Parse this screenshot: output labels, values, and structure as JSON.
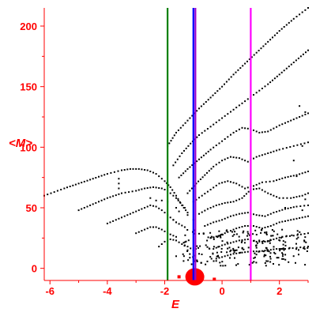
{
  "chart_data": {
    "type": "scatter",
    "title": "",
    "xlabel": "E",
    "ylabel": "<M>",
    "xlim": [
      -6.2,
      3.0
    ],
    "ylim": [
      -10,
      215
    ],
    "x_ticks": [
      -6,
      -4,
      -2,
      0,
      2
    ],
    "y_ticks": [
      0,
      50,
      100,
      150,
      200
    ],
    "grid": false,
    "legend": "none",
    "colors": {
      "axis": "#ff0000",
      "points": "#000000",
      "cluster": "#ff0000",
      "line_green": "#008000",
      "line_blue": "#0000ff",
      "line_purple": "#9900cc",
      "line_magenta": "#ff00ff"
    },
    "vertical_lines": [
      {
        "x": -1.9,
        "color": "#008000"
      },
      {
        "x": -1.0,
        "color": "#0000ff"
      },
      {
        "x": -0.93,
        "color": "#9900cc"
      },
      {
        "x": 1.0,
        "color": "#ff00ff"
      }
    ],
    "curves": [
      {
        "points": [
          [
            -6.2,
            60
          ],
          [
            -5.5,
            66
          ],
          [
            -5,
            70
          ],
          [
            -4.5,
            74
          ],
          [
            -4,
            78
          ],
          [
            -3.5,
            81
          ],
          [
            -3.2,
            82
          ],
          [
            -2.9,
            82
          ],
          [
            -2.6,
            81
          ],
          [
            -2.3,
            78
          ],
          [
            -2.0,
            72
          ],
          [
            -1.8,
            67
          ],
          [
            -1.6,
            60
          ],
          [
            -1.4,
            52
          ],
          [
            -1.2,
            46
          ]
        ]
      },
      {
        "points": [
          [
            -5.0,
            48
          ],
          [
            -4.5,
            53
          ],
          [
            -4,
            58
          ],
          [
            -3.5,
            62
          ],
          [
            -3,
            64
          ],
          [
            -2.7,
            66
          ],
          [
            -2.4,
            67
          ],
          [
            -2.1,
            66
          ],
          [
            -1.9,
            64
          ],
          [
            -1.6,
            58
          ],
          [
            -1.3,
            50
          ]
        ]
      },
      {
        "points": [
          [
            -4.0,
            37
          ],
          [
            -3.5,
            42
          ],
          [
            -3,
            47
          ],
          [
            -2.7,
            50
          ],
          [
            -2.5,
            52
          ],
          [
            -2.3,
            51
          ],
          [
            -2.1,
            48
          ],
          [
            -1.9,
            44
          ],
          [
            -1.6,
            38
          ],
          [
            -1.3,
            34
          ]
        ]
      },
      {
        "points": [
          [
            -3.0,
            29
          ],
          [
            -2.7,
            32
          ],
          [
            -2.5,
            34
          ],
          [
            -2.3,
            34
          ],
          [
            -2.1,
            32
          ],
          [
            -1.9,
            29
          ],
          [
            -1.6,
            26
          ]
        ]
      },
      {
        "points": [
          [
            -2.2,
            18
          ],
          [
            -2.0,
            22
          ],
          [
            -1.8,
            24
          ],
          [
            -1.6,
            23
          ],
          [
            -1.4,
            20
          ],
          [
            -1.2,
            18
          ],
          [
            -1.0,
            15
          ]
        ]
      },
      {
        "points": [
          [
            -1.9,
            101
          ],
          [
            -1.6,
            112
          ],
          [
            -1.2,
            122
          ],
          [
            -0.8,
            132
          ],
          [
            -0.4,
            141
          ],
          [
            0,
            150
          ],
          [
            0.4,
            160
          ],
          [
            0.8,
            169
          ],
          [
            1.2,
            178
          ],
          [
            1.6,
            187
          ],
          [
            2,
            196
          ],
          [
            2.5,
            206
          ],
          [
            3,
            215
          ]
        ]
      },
      {
        "points": [
          [
            -1.7,
            85
          ],
          [
            -1.4,
            95
          ],
          [
            -1.1,
            103
          ],
          [
            -0.8,
            110
          ],
          [
            -0.4,
            117
          ],
          [
            0,
            124
          ],
          [
            0.4,
            131
          ],
          [
            0.8,
            138
          ],
          [
            1.2,
            145
          ],
          [
            1.6,
            152
          ],
          [
            2,
            160
          ],
          [
            2.5,
            170
          ],
          [
            3,
            180
          ]
        ]
      },
      {
        "points": [
          [
            -1.5,
            75
          ],
          [
            -1.2,
            82
          ],
          [
            -0.8,
            90
          ],
          [
            -0.4,
            98
          ],
          [
            0,
            105
          ],
          [
            0.4,
            112
          ],
          [
            0.7,
            116
          ],
          [
            1,
            115
          ],
          [
            1.3,
            112
          ],
          [
            1.6,
            113
          ],
          [
            2,
            118
          ],
          [
            2.5,
            123
          ],
          [
            3,
            128
          ]
        ]
      },
      {
        "points": [
          [
            -1.2,
            62
          ],
          [
            -0.9,
            70
          ],
          [
            -0.6,
            77
          ],
          [
            -0.3,
            84
          ],
          [
            0,
            89
          ],
          [
            0.3,
            92
          ],
          [
            0.6,
            91
          ],
          [
            0.9,
            88
          ],
          [
            1.2,
            92
          ],
          [
            1.6,
            95
          ],
          [
            2,
            98
          ],
          [
            2.5,
            101
          ],
          [
            3,
            104
          ]
        ]
      },
      {
        "points": [
          [
            -1.0,
            55
          ],
          [
            -0.7,
            60
          ],
          [
            -0.4,
            65
          ],
          [
            -0.1,
            70
          ],
          [
            0.2,
            72
          ],
          [
            0.5,
            70
          ],
          [
            0.8,
            66
          ],
          [
            1.1,
            68
          ],
          [
            1.4,
            71
          ],
          [
            1.8,
            72
          ],
          [
            2.2,
            75
          ],
          [
            2.6,
            77
          ],
          [
            3,
            80
          ]
        ]
      },
      {
        "points": [
          [
            -0.8,
            45
          ],
          [
            -0.5,
            49
          ],
          [
            -0.2,
            52
          ],
          [
            0.1,
            54
          ],
          [
            0.4,
            55
          ],
          [
            0.7,
            58
          ],
          [
            1,
            65
          ],
          [
            1.3,
            66
          ],
          [
            1.6,
            62
          ],
          [
            2,
            58
          ],
          [
            2.4,
            58
          ],
          [
            2.8,
            60
          ],
          [
            3,
            62
          ]
        ]
      },
      {
        "points": [
          [
            -0.6,
            35
          ],
          [
            -0.3,
            38
          ],
          [
            0,
            40
          ],
          [
            0.3,
            43
          ],
          [
            0.6,
            45
          ],
          [
            0.9,
            46
          ],
          [
            1.2,
            44
          ],
          [
            1.5,
            43
          ],
          [
            1.8,
            46
          ],
          [
            2.2,
            49
          ],
          [
            2.6,
            51
          ],
          [
            3,
            52
          ]
        ]
      },
      {
        "points": [
          [
            -0.4,
            25
          ],
          [
            -0.1,
            27
          ],
          [
            0.2,
            30
          ],
          [
            0.5,
            33
          ],
          [
            0.8,
            35
          ],
          [
            1.1,
            35
          ],
          [
            1.4,
            33
          ],
          [
            1.7,
            35
          ],
          [
            2,
            38
          ],
          [
            2.4,
            40
          ],
          [
            2.8,
            42
          ],
          [
            3,
            43
          ]
        ]
      },
      {
        "points": [
          [
            -0.3,
            16
          ],
          [
            0,
            19
          ],
          [
            0.3,
            21
          ],
          [
            0.6,
            23
          ],
          [
            0.9,
            24
          ],
          [
            1.2,
            22
          ],
          [
            1.5,
            22
          ],
          [
            1.8,
            24
          ],
          [
            2.1,
            26
          ],
          [
            2.5,
            27
          ],
          [
            3,
            29
          ]
        ]
      },
      {
        "points": [
          [
            -0.2,
            8
          ],
          [
            0.1,
            10
          ],
          [
            0.4,
            12
          ],
          [
            0.7,
            13
          ],
          [
            1,
            14
          ],
          [
            1.3,
            14
          ],
          [
            1.6,
            15
          ],
          [
            1.9,
            16
          ],
          [
            2.2,
            16
          ],
          [
            2.6,
            17
          ],
          [
            3,
            18
          ]
        ]
      }
    ],
    "scatter_region": {
      "x": [
        -1.4,
        3.0
      ],
      "y": [
        2,
        32
      ]
    },
    "extra_points": [
      [
        -3.6,
        66
      ],
      [
        -3.6,
        70
      ],
      [
        -3.6,
        74
      ],
      [
        -2.5,
        58
      ],
      [
        -2.3,
        56
      ],
      [
        -2.1,
        56
      ],
      [
        -1.9,
        55
      ],
      [
        -1.6,
        50
      ],
      [
        -1.5,
        47
      ],
      [
        -1.7,
        40
      ],
      [
        -1.6,
        38
      ],
      [
        -1.2,
        44
      ],
      [
        -1.0,
        40
      ],
      [
        -1.2,
        15
      ],
      [
        -0.8,
        12
      ],
      [
        -1.6,
        10
      ],
      [
        1.2,
        17
      ],
      [
        2.2,
        50
      ],
      [
        2.8,
        48
      ],
      [
        2.9,
        57
      ],
      [
        2.6,
        76
      ],
      [
        2.5,
        89
      ],
      [
        2.8,
        101
      ],
      [
        2.9,
        129
      ],
      [
        2.7,
        134
      ]
    ],
    "cluster": {
      "x": -0.95,
      "y": -7,
      "radius": 0.42
    }
  }
}
